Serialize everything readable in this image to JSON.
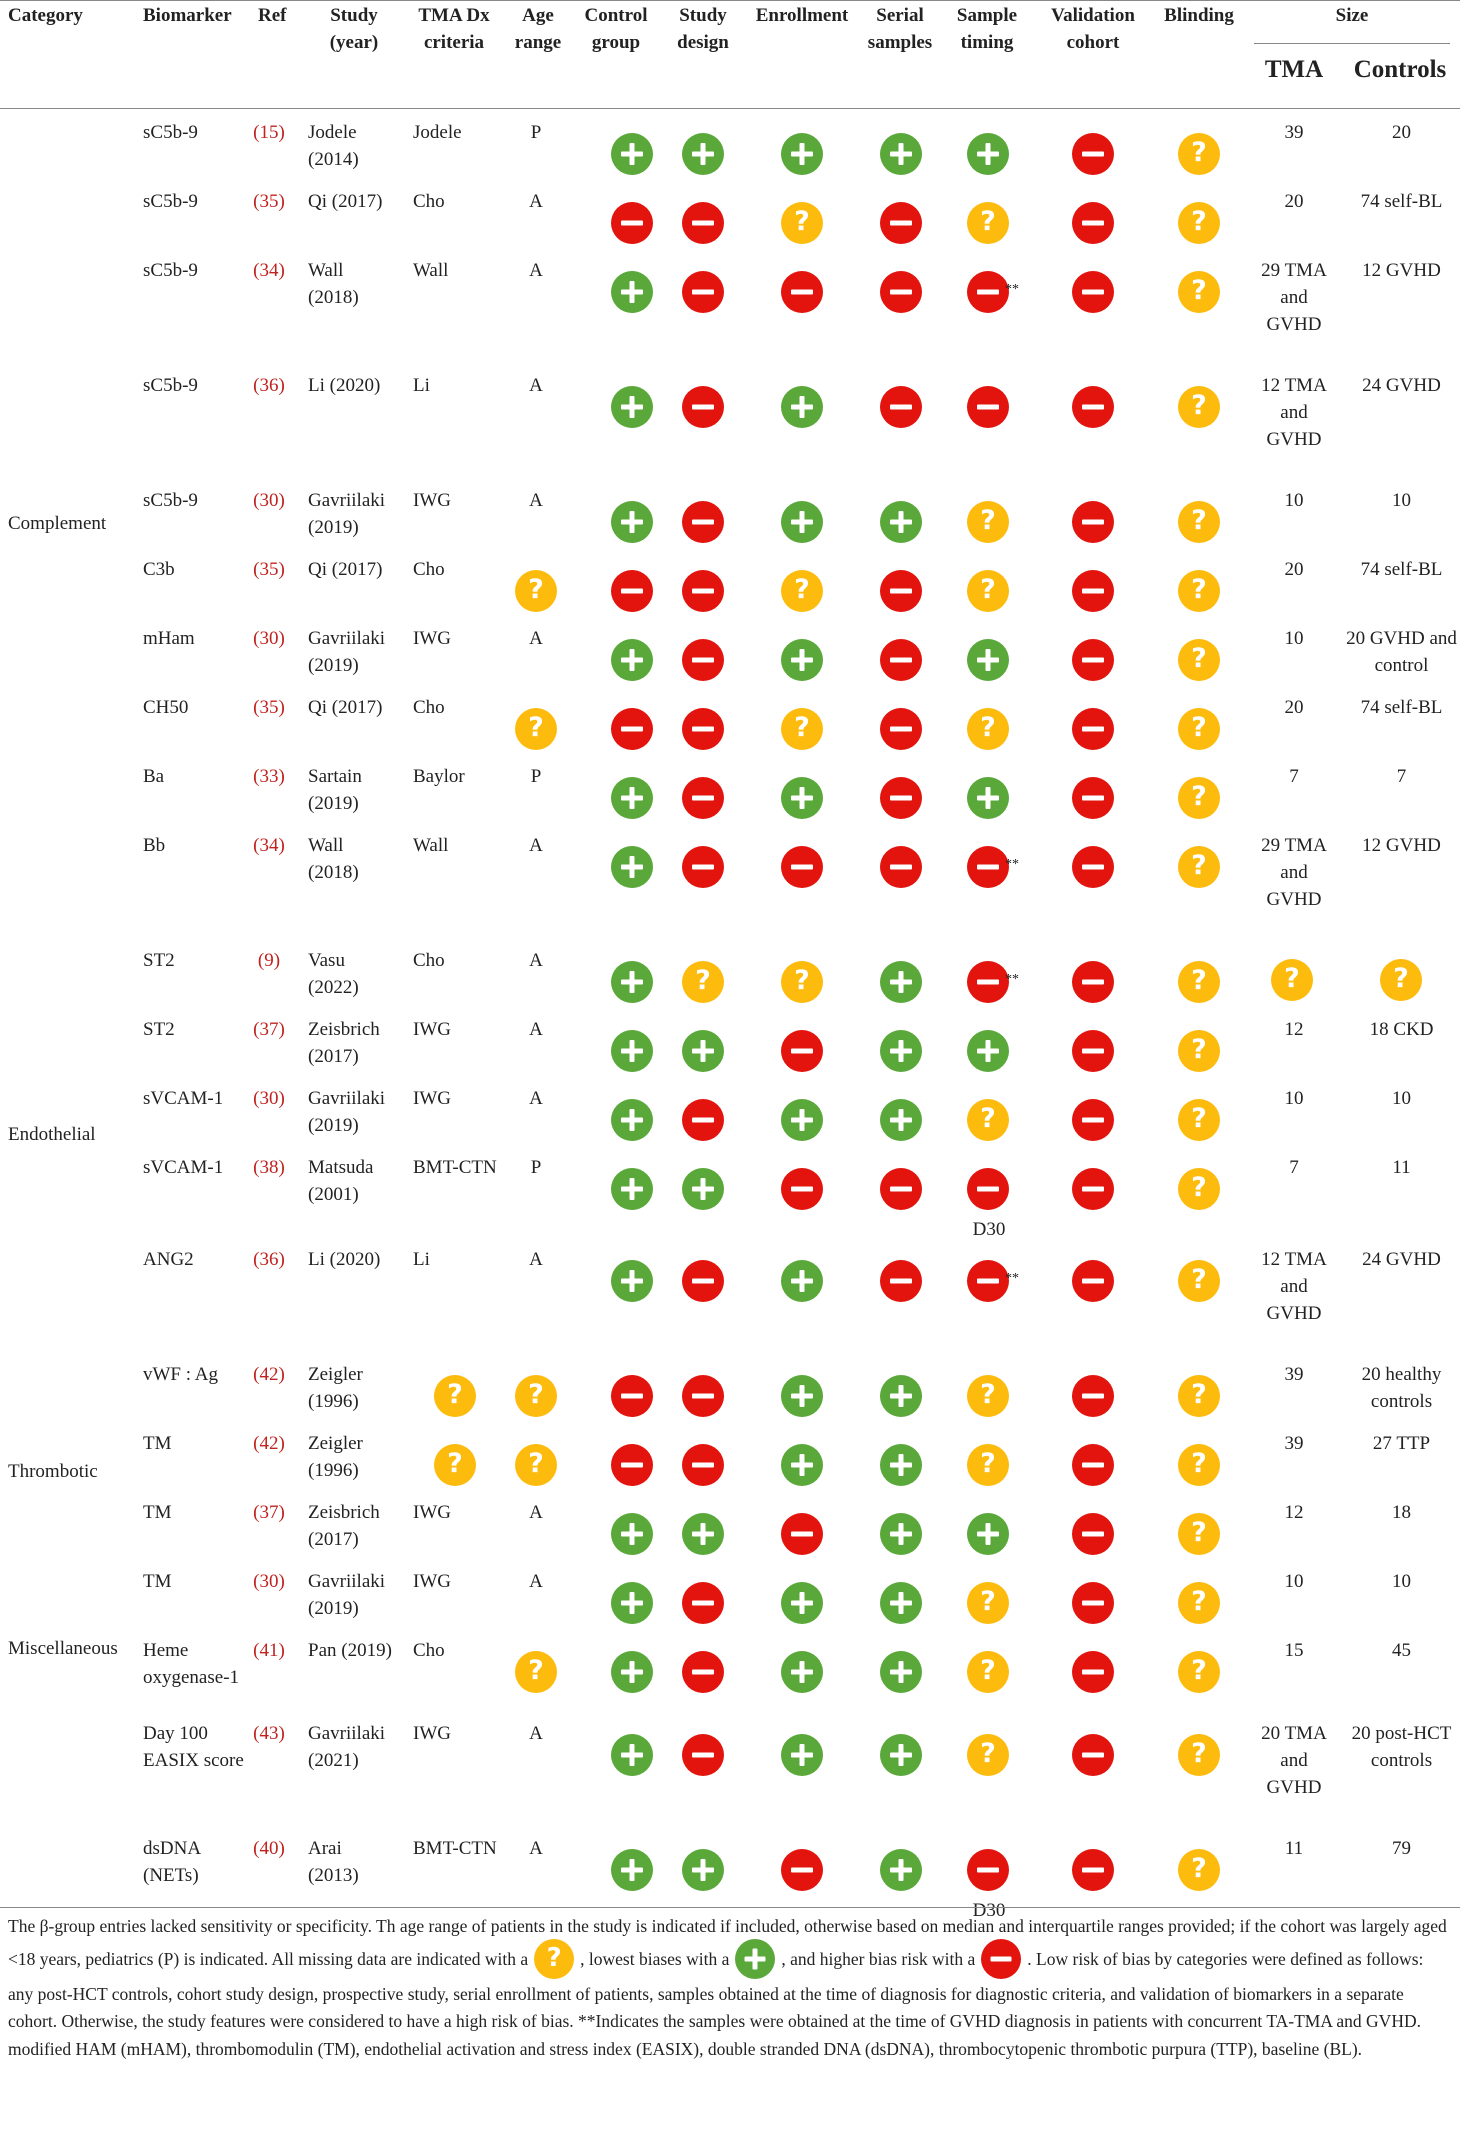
{
  "table": {
    "headers": {
      "category": "Category",
      "biomarker": "Biomarker",
      "ref": "Ref",
      "study": "Study (year)",
      "tma_dx": "TMA Dx criteria",
      "age": "Age range",
      "control": "Control group",
      "design": "Study design",
      "enrollment": "Enrollment",
      "serial": "Serial samples",
      "timing": "Sample timing",
      "validation": "Validation cohort",
      "blinding": "Blinding",
      "size": "Size",
      "size_tma": "TMA",
      "size_controls": "Controls"
    },
    "categories": [
      "Complement",
      "Endothelial",
      "Thrombotic",
      "Miscellaneous"
    ],
    "rows": [
      {
        "biomarker": "sC5b-9",
        "ref": "(15)",
        "study": "Jodele (2014)",
        "dx": "Jodele",
        "age": "P",
        "control": "plus",
        "design": "plus",
        "enrollment": "plus",
        "serial": "plus",
        "timing": "plus",
        "timing_note": "",
        "timing_sub": "",
        "validation": "minus",
        "blinding": "q",
        "size_tma": "39",
        "size_controls": "20"
      },
      {
        "biomarker": "sC5b-9",
        "ref": "(35)",
        "study": "Qi (2017)",
        "dx": "Cho",
        "age": "A",
        "control": "minus",
        "design": "minus",
        "enrollment": "q",
        "serial": "minus",
        "timing": "q",
        "timing_note": "",
        "timing_sub": "",
        "validation": "minus",
        "blinding": "q",
        "size_tma": "20",
        "size_controls": "74 self-BL"
      },
      {
        "biomarker": "sC5b-9",
        "ref": "(34)",
        "study": "Wall (2018)",
        "dx": "Wall",
        "age": "A",
        "control": "plus",
        "design": "minus",
        "enrollment": "minus",
        "serial": "minus",
        "timing": "minus",
        "timing_note": "**",
        "timing_sub": "",
        "validation": "minus",
        "blinding": "q",
        "size_tma": "29 TMA and GVHD",
        "size_controls": "12 GVHD"
      },
      {
        "biomarker": "sC5b-9",
        "ref": "(36)",
        "study": "Li (2020)",
        "dx": "Li",
        "age": "A",
        "control": "plus",
        "design": "minus",
        "enrollment": "plus",
        "serial": "minus",
        "timing": "minus",
        "timing_note": "",
        "timing_sub": "",
        "validation": "minus",
        "blinding": "q",
        "size_tma": "12 TMA and GVHD",
        "size_controls": "24 GVHD"
      },
      {
        "biomarker": "sC5b-9",
        "ref": "(30)",
        "study": "Gavriilaki (2019)",
        "dx": "IWG",
        "age": "A",
        "control": "plus",
        "design": "minus",
        "enrollment": "plus",
        "serial": "plus",
        "timing": "q",
        "timing_note": "",
        "timing_sub": "",
        "validation": "minus",
        "blinding": "q",
        "size_tma": "10",
        "size_controls": "10"
      },
      {
        "biomarker": "C3b",
        "ref": "(35)",
        "study": "Qi (2017)",
        "dx": "Cho",
        "age": "",
        "age_icon": "q",
        "control": "minus",
        "design": "minus",
        "enrollment": "q",
        "serial": "minus",
        "timing": "q",
        "timing_note": "",
        "timing_sub": "",
        "validation": "minus",
        "blinding": "q",
        "size_tma": "20",
        "size_controls": "74 self-BL"
      },
      {
        "biomarker": "mHam",
        "ref": "(30)",
        "study": "Gavriilaki (2019)",
        "dx": "IWG",
        "age": "A",
        "control": "plus",
        "design": "minus",
        "enrollment": "plus",
        "serial": "minus",
        "timing": "plus",
        "timing_note": "",
        "timing_sub": "",
        "validation": "minus",
        "blinding": "q",
        "size_tma": "10",
        "size_controls": "20 GVHD and control"
      },
      {
        "biomarker": "CH50",
        "ref": "(35)",
        "study": "Qi (2017)",
        "dx": "Cho",
        "age": "",
        "age_icon": "q",
        "control": "minus",
        "design": "minus",
        "enrollment": "q",
        "serial": "minus",
        "timing": "q",
        "timing_note": "",
        "timing_sub": "",
        "validation": "minus",
        "blinding": "q",
        "size_tma": "20",
        "size_controls": "74 self-BL"
      },
      {
        "biomarker": "Ba",
        "ref": "(33)",
        "study": "Sartain (2019)",
        "dx": "Baylor",
        "age": "P",
        "control": "plus",
        "design": "minus",
        "enrollment": "plus",
        "serial": "minus",
        "timing": "plus",
        "timing_note": "",
        "timing_sub": "",
        "validation": "minus",
        "blinding": "q",
        "size_tma": "7",
        "size_controls": "7"
      },
      {
        "biomarker": "Bb",
        "ref": "(34)",
        "study": "Wall (2018)",
        "dx": "Wall",
        "age": "A",
        "control": "plus",
        "design": "minus",
        "enrollment": "minus",
        "serial": "minus",
        "timing": "minus",
        "timing_note": "**",
        "timing_sub": "",
        "validation": "minus",
        "blinding": "q",
        "size_tma": "29 TMA and GVHD",
        "size_controls": "12 GVHD"
      },
      {
        "biomarker": "ST2",
        "ref": "(9)",
        "study": "Vasu (2022)",
        "dx": "Cho",
        "age": "A",
        "control": "plus",
        "design": "q",
        "enrollment": "q",
        "serial": "plus",
        "timing": "minus",
        "timing_note": "**",
        "timing_sub": "",
        "validation": "minus",
        "blinding": "q",
        "size_tma": "",
        "size_tma_icon": "q",
        "size_controls": "",
        "size_controls_icon": "q"
      },
      {
        "biomarker": "ST2",
        "ref": "(37)",
        "study": "Zeisbrich (2017)",
        "dx": "IWG",
        "age": "A",
        "control": "plus",
        "design": "plus",
        "enrollment": "minus",
        "serial": "plus",
        "timing": "plus",
        "timing_note": "",
        "timing_sub": "",
        "validation": "minus",
        "blinding": "q",
        "size_tma": "12",
        "size_controls": "18 CKD"
      },
      {
        "biomarker": "sVCAM-1",
        "ref": "(30)",
        "study": "Gavriilaki (2019)",
        "dx": "IWG",
        "age": "A",
        "control": "plus",
        "design": "minus",
        "enrollment": "plus",
        "serial": "plus",
        "timing": "q",
        "timing_note": "",
        "timing_sub": "",
        "validation": "minus",
        "blinding": "q",
        "size_tma": "10",
        "size_controls": "10"
      },
      {
        "biomarker": "sVCAM-1",
        "ref": "(38)",
        "study": "Matsuda (2001)",
        "dx": "BMT-CTN",
        "age": "P",
        "control": "plus",
        "design": "plus",
        "enrollment": "minus",
        "serial": "minus",
        "timing": "minus",
        "timing_note": "",
        "timing_sub": "D30",
        "validation": "minus",
        "blinding": "q",
        "size_tma": "7",
        "size_controls": "11"
      },
      {
        "biomarker": "ANG2",
        "ref": "(36)",
        "study": "Li (2020)",
        "dx": "Li",
        "age": "A",
        "control": "plus",
        "design": "minus",
        "enrollment": "plus",
        "serial": "minus",
        "timing": "minus",
        "timing_note": "**",
        "timing_sub": "",
        "validation": "minus",
        "blinding": "q",
        "size_tma": "12 TMA and GVHD",
        "size_controls": "24 GVHD"
      },
      {
        "biomarker": "vWF : Ag",
        "ref": "(42)",
        "study": "Zeigler (1996)",
        "dx": "",
        "dx_icon": "q",
        "age": "",
        "age_icon": "q",
        "control": "minus",
        "design": "minus",
        "enrollment": "plus",
        "serial": "plus",
        "timing": "q",
        "timing_note": "",
        "timing_sub": "",
        "validation": "minus",
        "blinding": "q",
        "size_tma": "39",
        "size_controls": "20 healthy controls"
      },
      {
        "biomarker": "TM",
        "ref": "(42)",
        "study": "Zeigler (1996)",
        "dx": "",
        "dx_icon": "q",
        "age": "",
        "age_icon": "q",
        "control": "minus",
        "design": "minus",
        "enrollment": "plus",
        "serial": "plus",
        "timing": "q",
        "timing_note": "",
        "timing_sub": "",
        "validation": "minus",
        "blinding": "q",
        "size_tma": "39",
        "size_controls": "27 TTP"
      },
      {
        "biomarker": "TM",
        "ref": "(37)",
        "study": "Zeisbrich (2017)",
        "dx": "IWG",
        "age": "A",
        "control": "plus",
        "design": "plus",
        "enrollment": "minus",
        "serial": "plus",
        "timing": "plus",
        "timing_note": "",
        "timing_sub": "",
        "validation": "minus",
        "blinding": "q",
        "size_tma": "12",
        "size_controls": "18"
      },
      {
        "biomarker": "TM",
        "ref": "(30)",
        "study": "Gavriilaki (2019)",
        "dx": "IWG",
        "age": "A",
        "control": "plus",
        "design": "minus",
        "enrollment": "plus",
        "serial": "plus",
        "timing": "q",
        "timing_note": "",
        "timing_sub": "",
        "validation": "minus",
        "blinding": "q",
        "size_tma": "10",
        "size_controls": "10"
      },
      {
        "biomarker": "Heme oxygenase-1",
        "ref": "(41)",
        "study": "Pan (2019)",
        "dx": "Cho",
        "age": "",
        "age_icon": "q",
        "control": "plus",
        "design": "minus",
        "enrollment": "plus",
        "serial": "plus",
        "timing": "q",
        "timing_note": "",
        "timing_sub": "",
        "validation": "minus",
        "blinding": "q",
        "size_tma": "15",
        "size_controls": "45"
      },
      {
        "biomarker": "Day 100 EASIX score",
        "ref": "(43)",
        "study": "Gavriilaki (2021)",
        "dx": "IWG",
        "age": "A",
        "control": "plus",
        "design": "minus",
        "enrollment": "plus",
        "serial": "plus",
        "timing": "q",
        "timing_note": "",
        "timing_sub": "",
        "validation": "minus",
        "blinding": "q",
        "size_tma": "20 TMA and GVHD",
        "size_controls": "20 post-HCT controls"
      },
      {
        "biomarker": "dsDNA (NETs)",
        "ref": "(40)",
        "study": "Arai (2013)",
        "dx": "BMT-CTN",
        "age": "A",
        "control": "plus",
        "design": "plus",
        "enrollment": "minus",
        "serial": "plus",
        "timing": "minus",
        "timing_note": "",
        "timing_sub": "D30",
        "validation": "minus",
        "blinding": "q",
        "size_tma": "11",
        "size_controls": "79"
      }
    ]
  },
  "footnote": {
    "p1_a": "The β-group entries lacked sensitivity or specificity. Th age range of patients in the study is indicated if included, otherwise based on median and interquartile ranges provided; if the cohort was largely aged <18 years, pediatrics (P) is indicated. All missing data are indicated with a",
    "p1_b": ", lowest biases with a",
    "p1_c": ", and higher bias risk with a",
    "p1_d": ". Low risk of bias by categories were defined as follows: any post-HCT controls, cohort study design, prospective study, serial enrollment of patients, samples obtained at the time of diagnosis for diagnostic criteria, and validation of biomarkers in a separate cohort. Otherwise, the study features were considered to have a high risk of bias. **Indicates the samples were obtained at the time of GVHD diagnosis in patients with concurrent TA-TMA and GVHD.",
    "p2": "modified HAM (mHAM), thrombomodulin (TM), endothelial activation and stress index (EASIX), double stranded DNA (dsDNA), thrombocytopenic thrombotic purpura (TTP), baseline (BL).",
    "icon_missing": "q",
    "icon_low": "plus",
    "icon_high": "minus"
  },
  "colors": {
    "plus": "#5aa83a",
    "minus": "#e2140d",
    "q": "#fcbb0d",
    "ref": "#c0221f"
  }
}
